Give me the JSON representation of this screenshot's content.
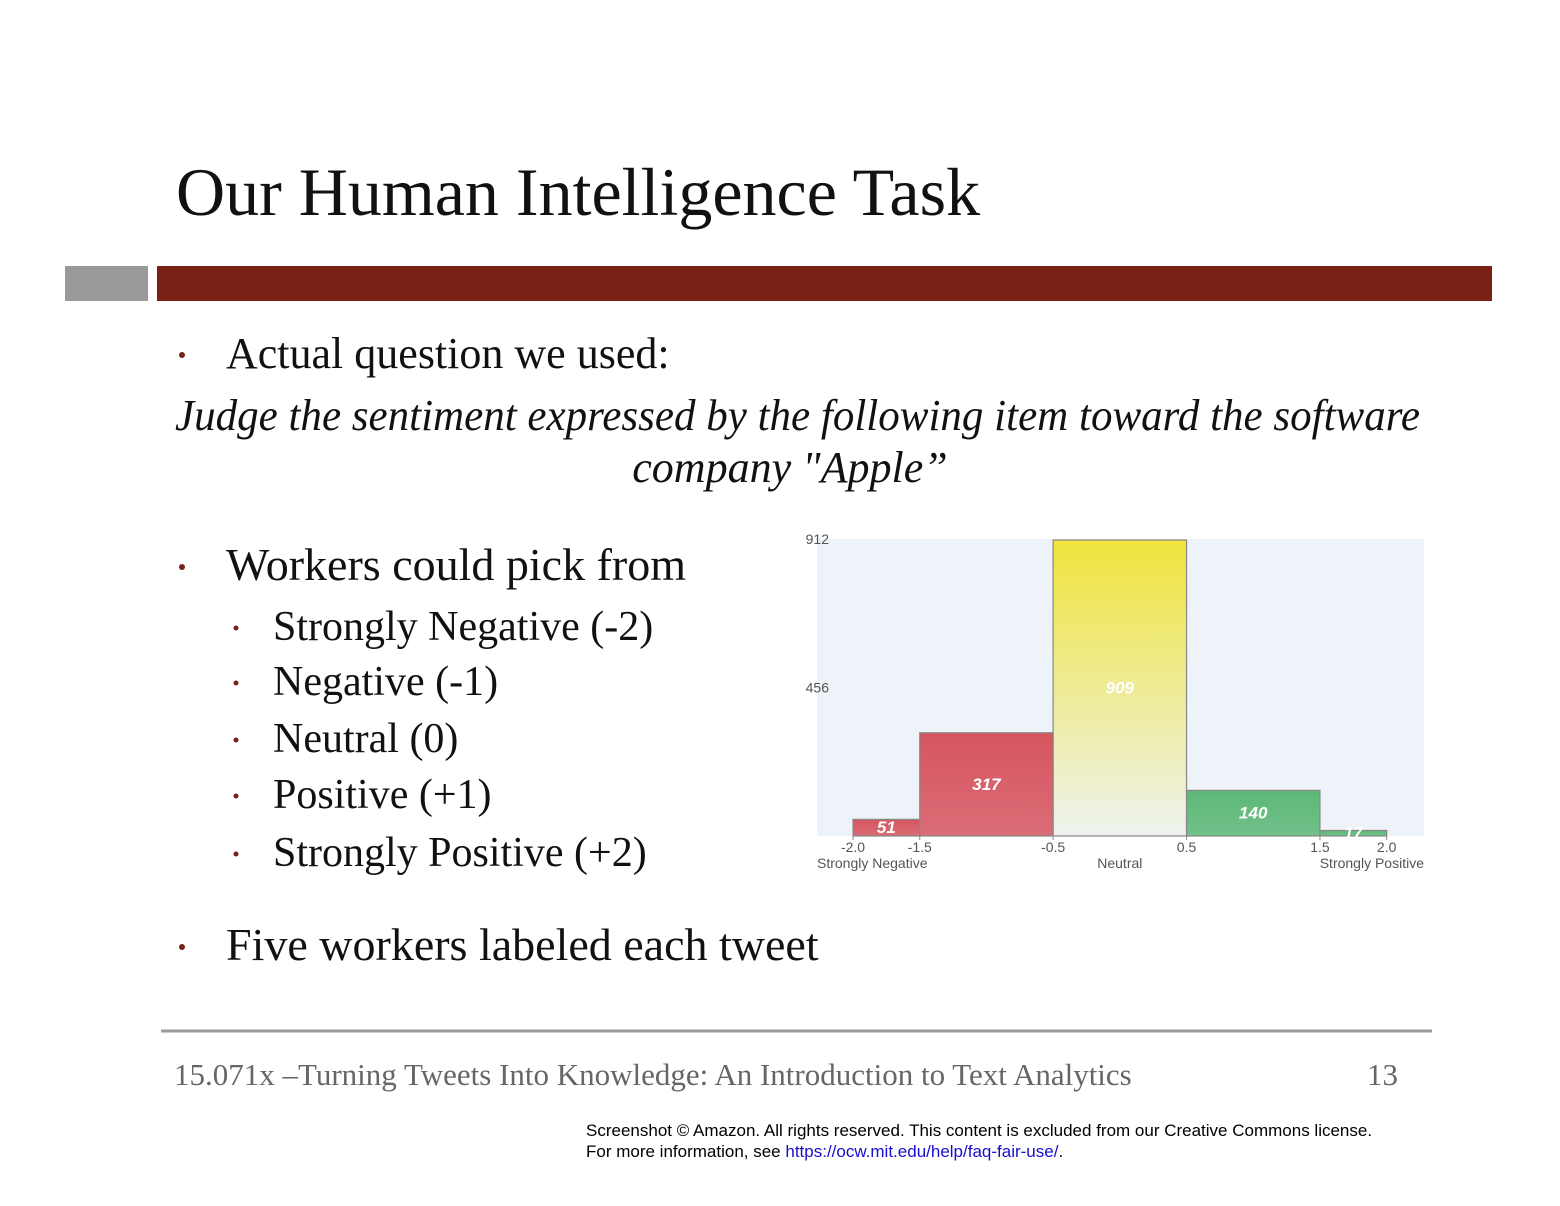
{
  "slide": {
    "title": "Our Human Intelligence Task",
    "bullet1": "Actual question we used:",
    "question": [
      "Judge the sentiment expressed by the following item toward the software",
      "company \"Apple”"
    ],
    "bullet2": "Workers could pick from",
    "options": [
      "Strongly Negative (-2)",
      "Negative (-1)",
      "Neutral (0)",
      "Positive (+1)",
      "Strongly Positive (+2)"
    ],
    "bullet3": "Five workers labeled each tweet",
    "footer": "15.071x –Turning Tweets Into Knowledge: An Introduction to Text Analytics",
    "page_number": "13"
  },
  "notice": {
    "line1": "Screenshot © Amazon. All rights reserved. This content is excluded from our Creative Commons license.",
    "line2_before": "For more information, see ",
    "link": "https://ocw.mit.edu/help/faq-fair-use/",
    "line2_after": "."
  },
  "chart_data": {
    "type": "histogram",
    "bins": [
      -2.0,
      -1.5,
      -0.5,
      0.5,
      1.5,
      2.0
    ],
    "counts": [
      51,
      317,
      909,
      140,
      17
    ],
    "colors": [
      "#d6555f",
      "#d6555f",
      "#f0e43c",
      "#5cb877",
      "#5cb877"
    ],
    "category_labels": [
      "Strongly Negative",
      null,
      "Neutral",
      null,
      "Strongly Positive"
    ],
    "xlim": [
      -2.27,
      2.28
    ],
    "ylim": [
      0,
      912
    ],
    "xticks": [
      {
        "value": -2.0,
        "label": "-2.0"
      },
      -1.5,
      -0.5,
      0.5,
      1.5,
      {
        "value": 2.0,
        "label": "2.0"
      }
    ],
    "yticks": [
      456,
      912
    ]
  }
}
